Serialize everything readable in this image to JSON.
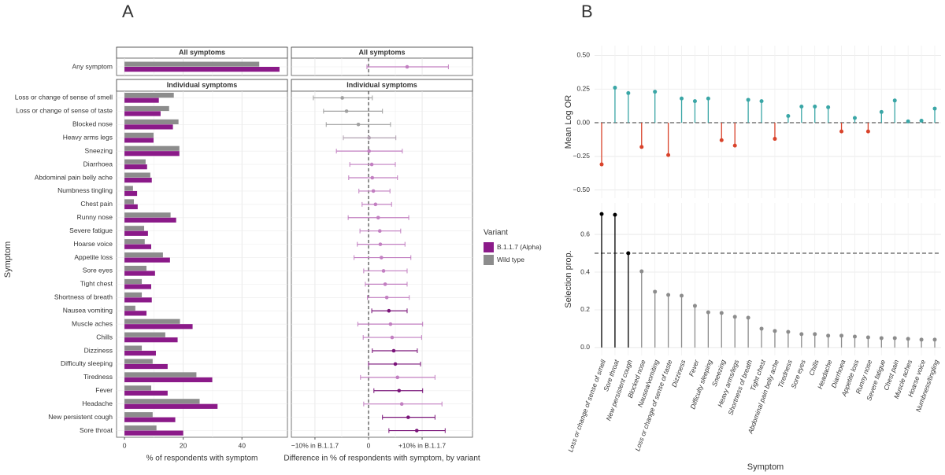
{
  "panel_labels": [
    "A",
    "B"
  ],
  "chart_data": [
    {
      "type": "hbar",
      "xlabel": "% of respondents with symptom",
      "ylabel": "Symptom",
      "xlim": [
        -2.7,
        55.5
      ],
      "xticks": [
        0,
        20,
        40
      ],
      "grid": true,
      "legend_title": "Variant",
      "series": [
        {
          "name": "B.1.1.7 (Alpha)",
          "color": "#8b1a89"
        },
        {
          "name": "Wild type",
          "color": "#8c8c8c"
        }
      ],
      "facets": [
        {
          "title": "All symptoms",
          "categories": [
            "Any symptom"
          ],
          "values": [
            [
              52.8
            ],
            [
              45.9
            ]
          ]
        },
        {
          "title": "Individual symptoms",
          "categories": [
            "Loss or change of sense of smell",
            "Loss or change of sense of taste",
            "Blocked nose",
            "Heavy arms legs",
            "Sneezing",
            "Diarrhoea",
            "Abdominal pain belly ache",
            "Numbness tingling",
            "Chest pain",
            "Runny nose",
            "Severe fatigue",
            "Hoarse voice",
            "Appetite loss",
            "Sore eyes",
            "Tight chest",
            "Shortness of breath",
            "Nausea vomiting",
            "Muscle aches",
            "Chills",
            "Dizziness",
            "Difficulty sleeping",
            "Tiredness",
            "Fever",
            "Headache",
            "New persistent cough",
            "Sore throat"
          ],
          "values": [
            [
              11.7,
              12.3,
              16.5,
              9.9,
              18.7,
              7.7,
              9.3,
              4.3,
              4.5,
              17.6,
              8,
              9.1,
              15.5,
              10.4,
              9.1,
              9.3,
              7.5,
              23.2,
              18.1,
              10.7,
              14.7,
              29.9,
              14.7,
              31.7,
              17.3,
              20
            ],
            [
              16.8,
              15.2,
              18.4,
              9.9,
              18.7,
              7.2,
              8.8,
              2.9,
              3.2,
              15.7,
              6.7,
              6.9,
              13.1,
              7.5,
              5.9,
              5.9,
              3.7,
              18.9,
              13.9,
              5.9,
              9.6,
              24.5,
              9.1,
              25.6,
              9.6,
              10.9
            ]
          ]
        }
      ]
    },
    {
      "type": "dot-ci",
      "xlabel": "Difference in % of respondents with symptom, by variant",
      "xlim": [
        -14.4,
        19.4
      ],
      "xticks": [
        {
          "value": -10,
          "label": "−10% in B.1.1.7"
        },
        0,
        {
          "value": 10,
          "label": "+10% in B.1.1.7"
        }
      ],
      "vline": 0,
      "grid": true,
      "facets": [
        {
          "title": "All symptoms",
          "values": [
            7.2
          ],
          "lower": [
            -0.3
          ],
          "upper": [
            14.9
          ],
          "colors": [
            "#c27fc1"
          ]
        },
        {
          "title": "Individual symptoms",
          "values": [
            -4.9,
            -4.1,
            -1.9,
            0.1,
            0.1,
            0.6,
            0.7,
            0.9,
            1.3,
            1.8,
            2.1,
            2.2,
            2.4,
            2.8,
            3.1,
            3.4,
            3.8,
            4.1,
            4.4,
            4.7,
            5.0,
            5.4,
            5.7,
            6.2,
            7.4,
            9.0
          ],
          "lower": [
            -10.3,
            -8.4,
            -7.9,
            -4.7,
            -6.0,
            -3.5,
            -3.7,
            -1.8,
            -1.2,
            -3.8,
            -1.6,
            -2.1,
            -2.7,
            -0.9,
            -0.6,
            -0.2,
            0.6,
            -2.0,
            -1.0,
            0.7,
            0,
            -1.5,
            1.0,
            -0.9,
            2.6,
            3.8
          ],
          "upper": [
            0.7,
            2.6,
            4.1,
            5.1,
            6.3,
            5.0,
            5.4,
            4.0,
            4.3,
            7.5,
            6.0,
            6.8,
            7.9,
            7.2,
            7.2,
            7.6,
            7.2,
            10.1,
            9.9,
            9.1,
            9.7,
            12.4,
            10.1,
            13.7,
            12.4,
            14.3
          ],
          "colors": [
            "#a0a0a0",
            "#a0a0a0",
            "#a0a0a0",
            "#b0a0b0",
            "#c27fc1",
            "#c27fc1",
            "#c27fc1",
            "#c27fc1",
            "#c27fc1",
            "#c27fc1",
            "#c27fc1",
            "#c27fc1",
            "#c27fc1",
            "#c27fc1",
            "#c27fc1",
            "#c27fc1",
            "#7a1479",
            "#c27fc1",
            "#c27fc1",
            "#7a1479",
            "#7a1479",
            "#c27fc1",
            "#7a1479",
            "#c27fc1",
            "#7a1479",
            "#7a1479"
          ]
        }
      ]
    },
    {
      "type": "lollipop",
      "ylabel": "Mean Log OR",
      "ylim": [
        -0.561,
        0.573
      ],
      "yticks": [
        {
          "value": -0.5,
          "label": "−0.50"
        },
        {
          "value": -0.25,
          "label": "−0.25"
        },
        {
          "value": 0,
          "label": "0.00"
        },
        {
          "value": 0.25,
          "label": "0.25"
        },
        {
          "value": 0.5,
          "label": "0.50"
        }
      ],
      "hline": 0,
      "grid": true,
      "positive_color": "#3aa6a6",
      "negative_color": "#d9432b",
      "categories": [
        "Loss or change of sense of smell",
        "Sore throat",
        "New persistent cough",
        "Blocked nose",
        "Nausea/vomiting",
        "Loss or change of sense of taste",
        "Dizziness",
        "Fever",
        "Difficulty sleeping",
        "Sneezing",
        "Heavy arms/legs",
        "Shortness of breath",
        "Tight chest",
        "Abdominal pain belly ache",
        "Tiredness",
        "Sore eyes",
        "Chills",
        "Headache",
        "Diarrhoea",
        "Appetite loss",
        "Runny nose",
        "Severe fatigue",
        "Chest pain",
        "Muscle aches",
        "Hoarse voice",
        "Numbness/tingling"
      ],
      "values": [
        -0.31,
        0.26,
        0.22,
        -0.18,
        0.23,
        -0.24,
        0.18,
        0.16,
        0.18,
        -0.13,
        -0.17,
        0.17,
        0.16,
        -0.12,
        0.05,
        0.12,
        0.12,
        0.115,
        -0.065,
        0.035,
        -0.065,
        0.08,
        0.165,
        0.01,
        0.015,
        0.105
      ]
    },
    {
      "type": "lollipop",
      "ylabel": "Selection prop.",
      "xlabel": "Symptom",
      "ylim": [
        -0.042,
        0.767
      ],
      "yticks": [
        {
          "value": 0,
          "label": "0.0"
        },
        {
          "value": 0.2,
          "label": "0.2"
        },
        {
          "value": 0.4,
          "label": "0.4"
        },
        {
          "value": 0.6,
          "label": "0.6"
        }
      ],
      "threshold": 0.5,
      "grid": true,
      "above_color": "#000000",
      "below_color": "#8c8c8c",
      "values": [
        0.708,
        0.704,
        0.5,
        0.404,
        0.296,
        0.279,
        0.275,
        0.221,
        0.187,
        0.183,
        0.163,
        0.158,
        0.1,
        0.088,
        0.083,
        0.071,
        0.071,
        0.063,
        0.063,
        0.058,
        0.054,
        0.05,
        0.05,
        0.046,
        0.042,
        0.042
      ]
    }
  ]
}
